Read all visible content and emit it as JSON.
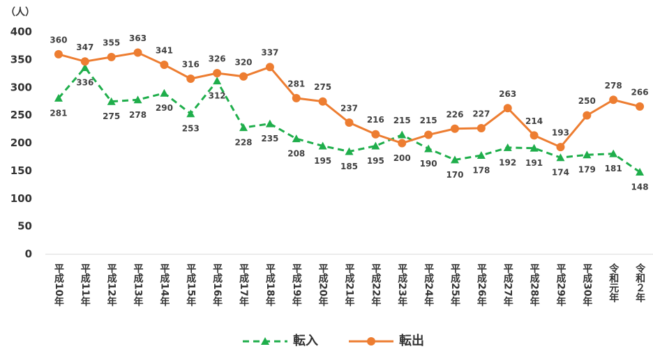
{
  "chart_data": {
    "type": "line",
    "y_label": "（人）",
    "categories": [
      "平成10年",
      "平成11年",
      "平成12年",
      "平成13年",
      "平成14年",
      "平成15年",
      "平成16年",
      "平成17年",
      "平成18年",
      "平成19年",
      "平成20年",
      "平成21年",
      "平成22年",
      "平成23年",
      "平成24年",
      "平成25年",
      "平成26年",
      "平成27年",
      "平成28年",
      "平成29年",
      "平成30年",
      "令和元年",
      "令和２年"
    ],
    "series": [
      {
        "name": "転入",
        "color": "#1fae4b",
        "dash": true,
        "marker": "triangle",
        "values": [
          281,
          336,
          275,
          278,
          290,
          253,
          312,
          228,
          235,
          208,
          195,
          185,
          195,
          215,
          190,
          170,
          178,
          192,
          191,
          174,
          179,
          181,
          148
        ]
      },
      {
        "name": "転出",
        "color": "#ed7d31",
        "dash": false,
        "marker": "circle",
        "values": [
          360,
          347,
          355,
          363,
          341,
          316,
          326,
          320,
          337,
          281,
          275,
          237,
          216,
          200,
          215,
          226,
          227,
          263,
          214,
          193,
          250,
          278,
          266
        ]
      }
    ],
    "ylim": [
      0,
      400
    ],
    "yticks": [
      0,
      50,
      100,
      150,
      200,
      250,
      300,
      350,
      400
    ],
    "grid": false,
    "legend": "bottom"
  }
}
